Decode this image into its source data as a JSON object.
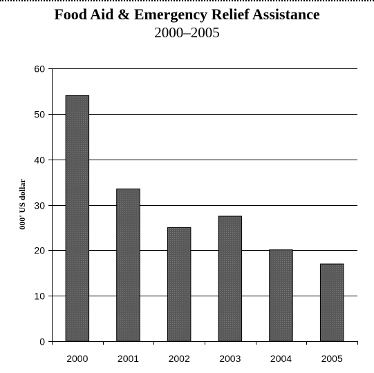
{
  "chart_data": {
    "type": "bar",
    "title": "Food Aid & Emergency Relief Assistance",
    "subtitle": "2000–2005",
    "xlabel": "",
    "ylabel": "000' US dollar",
    "categories": [
      "2000",
      "2001",
      "2002",
      "2003",
      "2004",
      "2005"
    ],
    "values": [
      54,
      33.5,
      25,
      27.5,
      20.1,
      17
    ],
    "ylim": [
      0,
      60
    ],
    "yticks": [
      0,
      10,
      20,
      30,
      40,
      50,
      60
    ],
    "grid": true,
    "legend": "none",
    "colors": {
      "bar_fill": "#5a5a5a",
      "bar_stroke": "#000000",
      "grid": "#000000",
      "axis": "#000000"
    }
  }
}
